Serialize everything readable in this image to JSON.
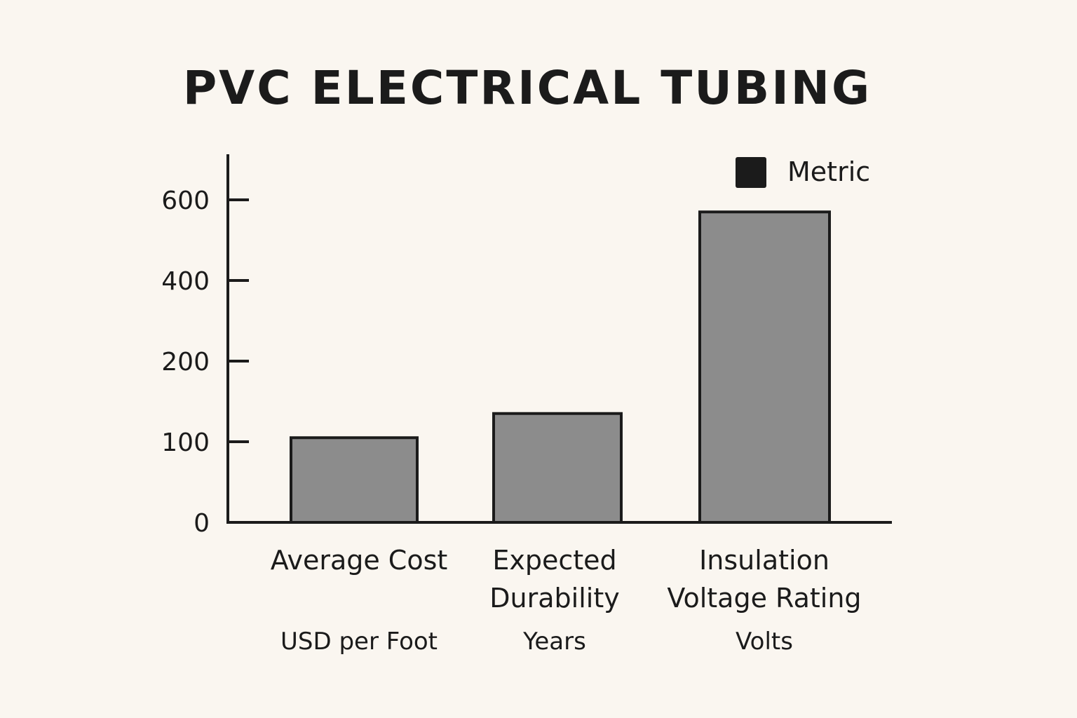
{
  "chart_data": {
    "type": "bar",
    "title": "PVC ELECTRICAL TUBING",
    "categories": [
      [
        "Average Cost"
      ],
      [
        "Expected",
        "Durability"
      ],
      [
        "Insulation",
        "Voltage Rating"
      ]
    ],
    "units": [
      "USD per Foot",
      "Years",
      "Volts"
    ],
    "series": [
      {
        "name": "Metric",
        "values": [
          105,
          135,
          570
        ]
      }
    ],
    "ylim": [
      0,
      700
    ],
    "yticks": [
      0,
      100,
      200,
      400,
      600
    ],
    "ytick_labels": [
      "0",
      "100",
      "200",
      "400",
      "600"
    ],
    "legend_position": "top-right",
    "grid": false,
    "colors": {
      "bar_fill": "#8c8c8c",
      "legend_swatch": "#1b1b1b",
      "axis": "#1b1b1b",
      "background": "#faf6f0"
    }
  }
}
